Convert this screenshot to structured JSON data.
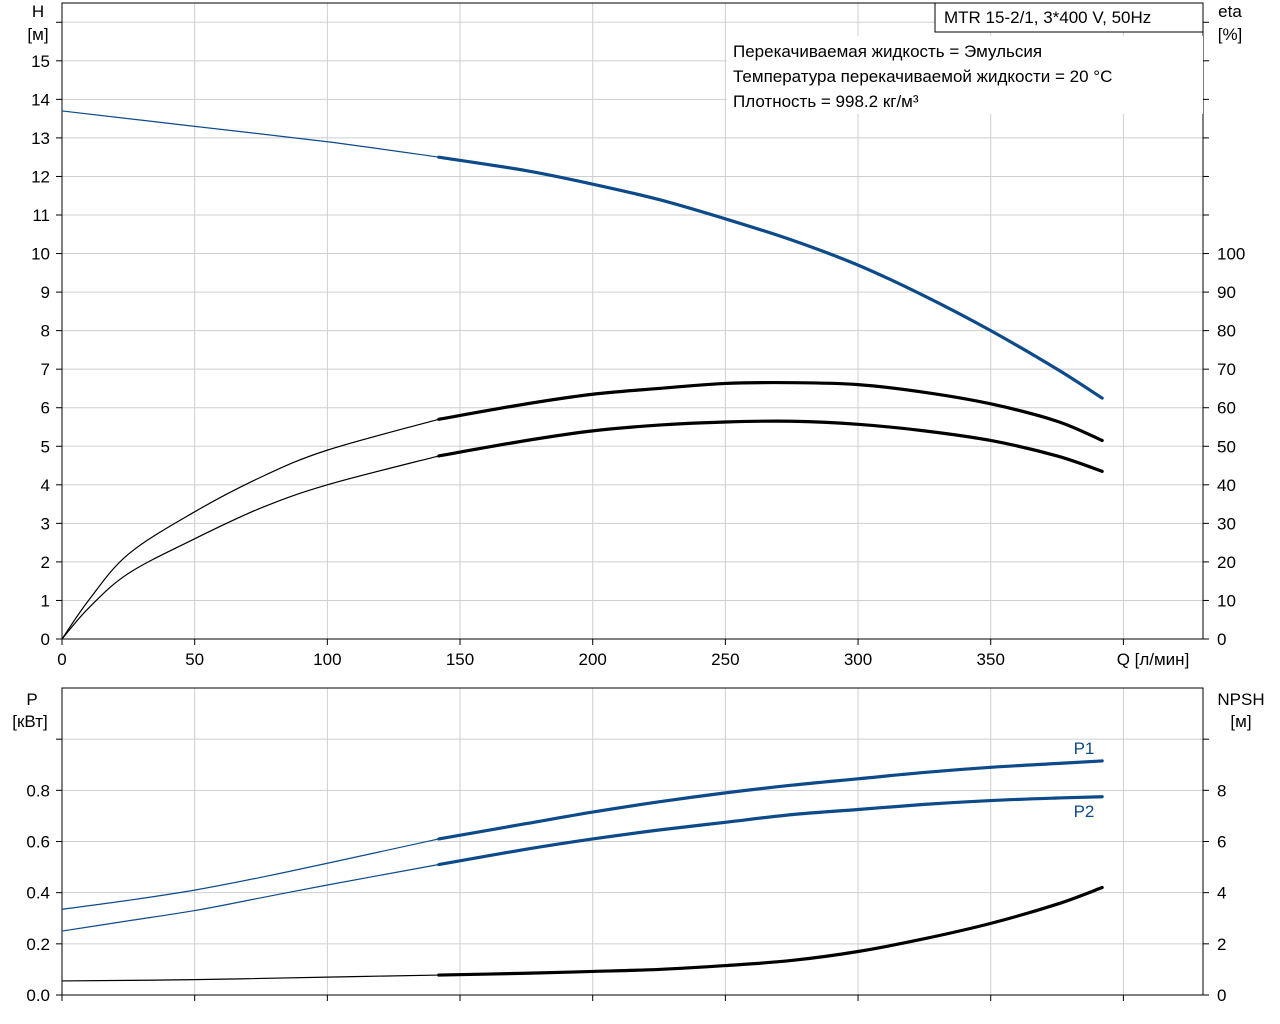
{
  "colors": {
    "blue": "#0d4a8a",
    "black": "#000000",
    "grid": "#cfcfcf",
    "axis": "#000000"
  },
  "header": {
    "model": "MTR 15-2/1, 3*400 V, 50Hz",
    "info": [
      "Перекачиваемая жидкость = Эмульсия",
      "Температура перекачиваемой жидкости = 20 °C",
      "Плотность = 998.2 кг/м³"
    ]
  },
  "chart_data": [
    {
      "type": "line",
      "id": "top",
      "xlabel": "Q [л/мин]",
      "ylabel_left": [
        "H",
        "[м]"
      ],
      "ylabel_right": [
        "eta",
        "[%]"
      ],
      "xlim": [
        0,
        430
      ],
      "ylim_left": [
        0,
        16.5
      ],
      "ylim_right": [
        0,
        165
      ],
      "grid": true,
      "x_ticks": [
        0,
        50,
        100,
        150,
        200,
        250,
        300,
        350
      ],
      "y_ticks_left": [
        0,
        1,
        2,
        3,
        4,
        5,
        6,
        7,
        8,
        9,
        10,
        11,
        12,
        13,
        14,
        15
      ],
      "y_ticks_right": [
        0,
        10,
        20,
        30,
        40,
        50,
        60,
        70,
        80,
        90,
        100
      ],
      "duty_start_q": 142,
      "series": [
        {
          "axis": "left",
          "color": "#0d4a8a",
          "x": [
            0,
            50,
            100,
            142,
            175,
            200,
            225,
            250,
            275,
            300,
            325,
            350,
            375,
            392
          ],
          "y": [
            13.7,
            13.3,
            12.9,
            12.5,
            12.15,
            11.8,
            11.4,
            10.9,
            10.35,
            9.7,
            8.9,
            8.0,
            7.0,
            6.25
          ]
        },
        {
          "axis": "right",
          "color": "#000000",
          "x": [
            0,
            10,
            25,
            50,
            75,
            100,
            142,
            175,
            200,
            225,
            250,
            275,
            300,
            325,
            350,
            375,
            392
          ],
          "y": [
            0,
            10,
            22,
            33,
            42,
            49,
            57,
            61,
            63.5,
            65,
            66.3,
            66.5,
            66,
            64,
            61,
            56.5,
            51.5
          ]
        },
        {
          "axis": "right",
          "color": "#000000",
          "x": [
            0,
            10,
            25,
            50,
            75,
            100,
            142,
            175,
            200,
            225,
            250,
            275,
            300,
            325,
            350,
            375,
            392
          ],
          "y": [
            0,
            8,
            17,
            26,
            34,
            40,
            47.5,
            51.5,
            54,
            55.5,
            56.3,
            56.5,
            55.7,
            54,
            51.5,
            47.5,
            43.5
          ]
        }
      ]
    },
    {
      "type": "line",
      "id": "bottom",
      "ylabel_left": [
        "P",
        "[кВт]"
      ],
      "ylabel_right": [
        "NPSH",
        "[м]"
      ],
      "xlim": [
        0,
        430
      ],
      "ylim_left": [
        0,
        1.2
      ],
      "ylim_right": [
        0,
        12
      ],
      "grid": true,
      "x_ticks": [
        0,
        50,
        100,
        150,
        200,
        250,
        300,
        350
      ],
      "y_ticks_left": [
        0,
        0.2,
        0.4,
        0.6,
        0.8
      ],
      "y_tick_labels_left": [
        "0.0",
        "0.2",
        "0.4",
        "0.6",
        "0.8"
      ],
      "y_ticks_right": [
        0,
        2,
        4,
        6,
        8
      ],
      "duty_start_q": 142,
      "series": [
        {
          "name": "P1",
          "axis": "left",
          "color": "#0d4a8a",
          "x": [
            0,
            25,
            50,
            75,
            100,
            142,
            175,
            200,
            225,
            250,
            275,
            300,
            325,
            350,
            375,
            392
          ],
          "y": [
            0.335,
            0.37,
            0.41,
            0.46,
            0.515,
            0.61,
            0.67,
            0.715,
            0.755,
            0.79,
            0.82,
            0.845,
            0.87,
            0.89,
            0.905,
            0.915
          ]
        },
        {
          "name": "P2",
          "axis": "left",
          "color": "#0d4a8a",
          "x": [
            0,
            25,
            50,
            75,
            100,
            142,
            175,
            200,
            225,
            250,
            275,
            300,
            325,
            350,
            375,
            392
          ],
          "y": [
            0.25,
            0.29,
            0.33,
            0.38,
            0.43,
            0.51,
            0.57,
            0.61,
            0.645,
            0.675,
            0.705,
            0.725,
            0.745,
            0.76,
            0.77,
            0.775
          ]
        },
        {
          "axis": "right",
          "color": "#000000",
          "x": [
            0,
            50,
            100,
            142,
            175,
            200,
            225,
            250,
            275,
            300,
            325,
            350,
            375,
            392
          ],
          "y": [
            0.55,
            0.6,
            0.7,
            0.78,
            0.85,
            0.92,
            1.0,
            1.15,
            1.35,
            1.7,
            2.2,
            2.8,
            3.55,
            4.2
          ]
        }
      ]
    }
  ]
}
